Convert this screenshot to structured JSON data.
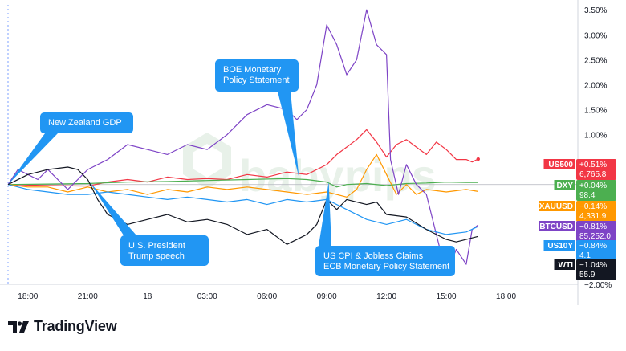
{
  "brand": {
    "name": "TradingView",
    "logo_icon": "tradingview-logo-icon"
  },
  "watermark": {
    "text": "babypips",
    "icon": "babypips-logo-icon"
  },
  "chart_data": {
    "type": "line",
    "title": "",
    "xlabel": "",
    "ylabel": "",
    "x_range": [
      0,
      28
    ],
    "y_range": [
      -2.0,
      3.6
    ],
    "yscale": "percent",
    "y_ticks": [
      {
        "v": 3.5,
        "label": "3.50%"
      },
      {
        "v": 3.0,
        "label": "3.00%"
      },
      {
        "v": 2.5,
        "label": "2.50%"
      },
      {
        "v": 2.0,
        "label": "2.00%"
      },
      {
        "v": 1.5,
        "label": "1.50%"
      },
      {
        "v": 1.0,
        "label": "1.00%"
      },
      {
        "v": -2.0,
        "label": "−2.00%"
      }
    ],
    "x_ticks": [
      {
        "t": 1,
        "label": "18:00"
      },
      {
        "t": 4,
        "label": "21:00"
      },
      {
        "t": 7,
        "label": "18"
      },
      {
        "t": 10,
        "label": "03:00"
      },
      {
        "t": 13,
        "label": "06:00"
      },
      {
        "t": 16,
        "label": "09:00"
      },
      {
        "t": 19,
        "label": "12:00"
      },
      {
        "t": 22,
        "label": "15:00"
      },
      {
        "t": 25,
        "label": "18:00"
      }
    ],
    "grid": false,
    "baseline": 0,
    "series": [
      {
        "name": "US500",
        "change": "+0.51%",
        "value": "6,765.8",
        "color": "#f23645",
        "points": [
          [
            0,
            0
          ],
          [
            2,
            -0.02
          ],
          [
            4,
            -0.03
          ],
          [
            5,
            0.05
          ],
          [
            6,
            0.1
          ],
          [
            7,
            0.05
          ],
          [
            8,
            0.15
          ],
          [
            9,
            0.1
          ],
          [
            10,
            0.12
          ],
          [
            11,
            0.1
          ],
          [
            12,
            0.2
          ],
          [
            13,
            0.15
          ],
          [
            14,
            0.25
          ],
          [
            15,
            0.2
          ],
          [
            16,
            0.4
          ],
          [
            16.5,
            0.6
          ],
          [
            17,
            0.75
          ],
          [
            17.5,
            0.9
          ],
          [
            18,
            1.1
          ],
          [
            18.5,
            0.85
          ],
          [
            19,
            0.55
          ],
          [
            19.5,
            0.8
          ],
          [
            20,
            0.9
          ],
          [
            20.5,
            0.75
          ],
          [
            21,
            0.6
          ],
          [
            21.5,
            0.85
          ],
          [
            22,
            0.7
          ],
          [
            22.5,
            0.5
          ],
          [
            23,
            0.5
          ],
          [
            23.3,
            0.45
          ],
          [
            23.6,
            0.51
          ]
        ]
      },
      {
        "name": "DXY",
        "change": "+0.04%",
        "value": "98.4",
        "color": "#4caf50",
        "points": [
          [
            0,
            0
          ],
          [
            2,
            0.01
          ],
          [
            4,
            0.02
          ],
          [
            6,
            0.05
          ],
          [
            8,
            0.06
          ],
          [
            10,
            0.08
          ],
          [
            12,
            0.1
          ],
          [
            14,
            0.12
          ],
          [
            15,
            0.1
          ],
          [
            16,
            0.05
          ],
          [
            16.5,
            -0.05
          ],
          [
            17,
            0
          ],
          [
            18,
            0.02
          ],
          [
            19,
            -0.02
          ],
          [
            20,
            0.02
          ],
          [
            21,
            0.03
          ],
          [
            22,
            0.05
          ],
          [
            23,
            0.04
          ],
          [
            23.6,
            0.04
          ]
        ]
      },
      {
        "name": "XAUUSD",
        "change": "−0.14%",
        "value": "4,331.9",
        "color": "#ff9800",
        "points": [
          [
            0,
            0
          ],
          [
            1,
            -0.05
          ],
          [
            2,
            -0.05
          ],
          [
            3,
            -0.15
          ],
          [
            4,
            -0.05
          ],
          [
            5,
            -0.15
          ],
          [
            6,
            -0.1
          ],
          [
            7,
            -0.2
          ],
          [
            8,
            -0.1
          ],
          [
            9,
            -0.15
          ],
          [
            10,
            -0.05
          ],
          [
            11,
            -0.1
          ],
          [
            12,
            -0.05
          ],
          [
            13,
            -0.1
          ],
          [
            14,
            -0.15
          ],
          [
            15,
            -0.2
          ],
          [
            16,
            -0.15
          ],
          [
            17,
            -0.25
          ],
          [
            17.5,
            -0.1
          ],
          [
            18,
            0.3
          ],
          [
            18.5,
            0.6
          ],
          [
            19,
            0.2
          ],
          [
            19.5,
            -0.2
          ],
          [
            20,
            0
          ],
          [
            20.5,
            -0.2
          ],
          [
            21,
            -0.1
          ],
          [
            22,
            -0.15
          ],
          [
            23,
            -0.1
          ],
          [
            23.6,
            -0.14
          ]
        ]
      },
      {
        "name": "BTCUSD",
        "change": "−0.81%",
        "value": "85,252.0",
        "color": "#7e44c6",
        "points": [
          [
            0,
            0
          ],
          [
            0.5,
            0.3
          ],
          [
            1,
            0.2
          ],
          [
            1.5,
            0.1
          ],
          [
            2,
            0.3
          ],
          [
            3,
            -0.1
          ],
          [
            4,
            0.3
          ],
          [
            5,
            0.5
          ],
          [
            6,
            0.8
          ],
          [
            7,
            0.7
          ],
          [
            8,
            0.6
          ],
          [
            9,
            0.8
          ],
          [
            10,
            0.7
          ],
          [
            11,
            1.0
          ],
          [
            12,
            1.4
          ],
          [
            13,
            1.6
          ],
          [
            14,
            1.5
          ],
          [
            14.5,
            1.3
          ],
          [
            15,
            1.5
          ],
          [
            15.5,
            2.0
          ],
          [
            16,
            3.2
          ],
          [
            16.5,
            2.8
          ],
          [
            17,
            2.2
          ],
          [
            17.5,
            2.5
          ],
          [
            18,
            3.5
          ],
          [
            18.5,
            2.8
          ],
          [
            19,
            2.6
          ],
          [
            19.2,
            0.5
          ],
          [
            19.6,
            -0.2
          ],
          [
            20,
            0.4
          ],
          [
            20.5,
            0
          ],
          [
            21,
            -0.2
          ],
          [
            21.5,
            -1.0
          ],
          [
            22,
            -1.8
          ],
          [
            22.5,
            -1.3
          ],
          [
            23,
            -1.6
          ],
          [
            23.3,
            -0.9
          ],
          [
            23.6,
            -0.81
          ]
        ]
      },
      {
        "name": "US10Y",
        "change": "−0.84%",
        "value": "4.1",
        "color": "#2196f3",
        "points": [
          [
            0,
            0
          ],
          [
            1,
            -0.1
          ],
          [
            2,
            -0.15
          ],
          [
            3,
            -0.2
          ],
          [
            4,
            -0.2
          ],
          [
            5,
            -0.15
          ],
          [
            6,
            -0.2
          ],
          [
            7,
            -0.25
          ],
          [
            8,
            -0.3
          ],
          [
            9,
            -0.25
          ],
          [
            10,
            -0.3
          ],
          [
            11,
            -0.35
          ],
          [
            12,
            -0.3
          ],
          [
            13,
            -0.4
          ],
          [
            14,
            -0.3
          ],
          [
            15,
            -0.35
          ],
          [
            16,
            -0.3
          ],
          [
            17,
            -0.5
          ],
          [
            18,
            -0.7
          ],
          [
            19,
            -0.8
          ],
          [
            20,
            -0.7
          ],
          [
            21,
            -0.9
          ],
          [
            22,
            -1.0
          ],
          [
            23,
            -0.95
          ],
          [
            23.6,
            -0.84
          ]
        ]
      },
      {
        "name": "WTI",
        "change": "−1.04%",
        "value": "55.9",
        "color": "#131722",
        "points": [
          [
            0,
            0
          ],
          [
            1,
            0.2
          ],
          [
            2,
            0.3
          ],
          [
            3,
            0.35
          ],
          [
            3.5,
            0.3
          ],
          [
            4,
            0.1
          ],
          [
            4.5,
            -0.3
          ],
          [
            5,
            -0.6
          ],
          [
            6,
            -0.8
          ],
          [
            7,
            -0.7
          ],
          [
            8,
            -0.6
          ],
          [
            9,
            -0.75
          ],
          [
            10,
            -0.7
          ],
          [
            11,
            -0.8
          ],
          [
            12,
            -1.0
          ],
          [
            13,
            -0.9
          ],
          [
            14,
            -1.2
          ],
          [
            15,
            -1.0
          ],
          [
            15.5,
            -0.8
          ],
          [
            16,
            -0.3
          ],
          [
            16.5,
            -0.5
          ],
          [
            17,
            -0.3
          ],
          [
            18,
            -0.4
          ],
          [
            18.5,
            -0.35
          ],
          [
            19,
            -0.6
          ],
          [
            20,
            -0.65
          ],
          [
            21,
            -0.9
          ],
          [
            22,
            -1.1
          ],
          [
            22.5,
            -1.15
          ],
          [
            23,
            -1.1
          ],
          [
            23.6,
            -1.04
          ]
        ]
      }
    ],
    "annotations": [
      {
        "text": [
          "New Zealand GDP"
        ],
        "target": [
          0,
          0
        ]
      },
      {
        "text": [
          "BOE Monetary",
          "Policy Statement"
        ],
        "target": [
          14.6,
          0.15
        ]
      },
      {
        "text": [
          "U.S. President",
          "Trump speech"
        ],
        "target": [
          4.1,
          0.05
        ]
      },
      {
        "text": [
          "US CPI & Jobless Claims",
          "ECB Monetary Policy Statement"
        ],
        "target": [
          16.1,
          0.05
        ]
      }
    ]
  }
}
